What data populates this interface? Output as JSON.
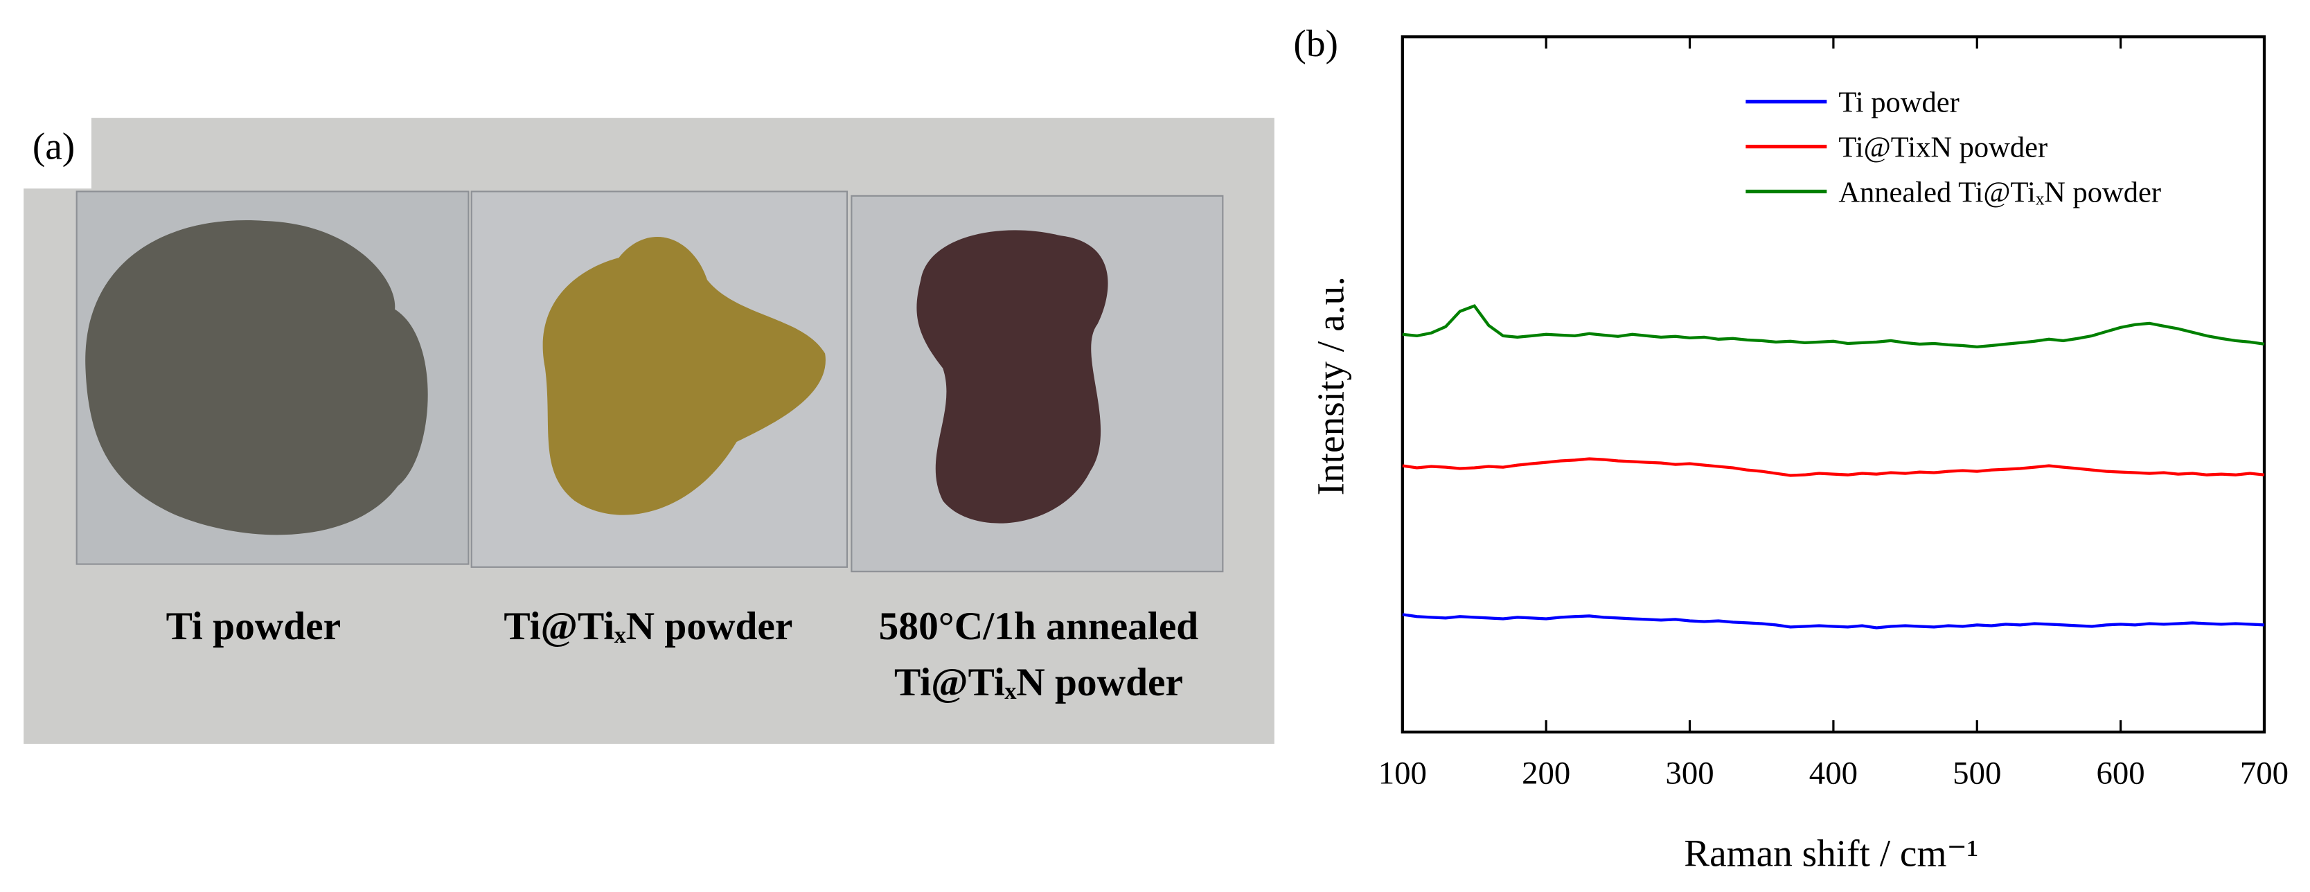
{
  "panel_a": {
    "label": "(a)",
    "samples": [
      "Ti powder",
      "Ti@TiₓN powder",
      "580°C/1h annealed",
      "Ti@TiₓN powder"
    ]
  },
  "chart_data": {
    "type": "line",
    "panel_label": "(b)",
    "xlabel": "Raman shift / cm⁻¹",
    "ylabel": "Intensity / a.u.",
    "xlim": [
      100,
      700
    ],
    "xticks": [
      100,
      200,
      300,
      400,
      500,
      600,
      700
    ],
    "ylim": [
      0,
      100
    ],
    "legend": "upper right",
    "x": [
      100,
      110,
      120,
      130,
      140,
      150,
      160,
      170,
      180,
      190,
      200,
      210,
      220,
      230,
      240,
      250,
      260,
      270,
      280,
      290,
      300,
      310,
      320,
      330,
      340,
      350,
      360,
      370,
      380,
      390,
      400,
      410,
      420,
      430,
      440,
      450,
      460,
      470,
      480,
      490,
      500,
      510,
      520,
      530,
      540,
      550,
      560,
      570,
      580,
      590,
      600,
      610,
      620,
      630,
      640,
      650,
      660,
      670,
      680,
      690,
      700
    ],
    "series": [
      {
        "name": "Ti powder",
        "color": "#0000ff",
        "values": [
          16.9,
          16.6,
          16.5,
          16.4,
          16.6,
          16.5,
          16.4,
          16.3,
          16.5,
          16.4,
          16.3,
          16.5,
          16.6,
          16.7,
          16.5,
          16.4,
          16.3,
          16.2,
          16.1,
          16.2,
          16.0,
          15.9,
          16.0,
          15.8,
          15.7,
          15.6,
          15.4,
          15.1,
          15.2,
          15.3,
          15.2,
          15.1,
          15.3,
          15.0,
          15.2,
          15.3,
          15.2,
          15.1,
          15.3,
          15.2,
          15.4,
          15.3,
          15.5,
          15.4,
          15.6,
          15.5,
          15.4,
          15.3,
          15.2,
          15.4,
          15.5,
          15.4,
          15.6,
          15.5,
          15.6,
          15.7,
          15.6,
          15.5,
          15.6,
          15.5,
          15.4
        ]
      },
      {
        "name": "Ti@TixN powder",
        "color": "#ff0000",
        "values": [
          38.3,
          38.0,
          38.2,
          38.1,
          37.9,
          38.0,
          38.2,
          38.1,
          38.4,
          38.6,
          38.8,
          39.0,
          39.1,
          39.3,
          39.2,
          39.0,
          38.9,
          38.8,
          38.7,
          38.5,
          38.6,
          38.4,
          38.2,
          38.0,
          37.7,
          37.5,
          37.2,
          36.9,
          37.0,
          37.2,
          37.1,
          37.0,
          37.2,
          37.1,
          37.3,
          37.2,
          37.4,
          37.3,
          37.5,
          37.6,
          37.5,
          37.7,
          37.8,
          37.9,
          38.1,
          38.3,
          38.1,
          37.9,
          37.7,
          37.5,
          37.4,
          37.3,
          37.2,
          37.3,
          37.1,
          37.2,
          37.0,
          37.1,
          37.0,
          37.2,
          37.0
        ]
      },
      {
        "name": "Annealed Ti@TiₓN powder",
        "color": "#008000",
        "values": [
          57.2,
          57.0,
          57.4,
          58.3,
          60.5,
          61.3,
          58.5,
          57.0,
          56.8,
          57.0,
          57.2,
          57.1,
          57.0,
          57.3,
          57.1,
          56.9,
          57.2,
          57.0,
          56.8,
          56.9,
          56.7,
          56.8,
          56.5,
          56.6,
          56.4,
          56.3,
          56.1,
          56.2,
          56.0,
          56.1,
          56.2,
          55.9,
          56.0,
          56.1,
          56.3,
          56.0,
          55.8,
          55.9,
          55.7,
          55.6,
          55.4,
          55.6,
          55.8,
          56.0,
          56.2,
          56.5,
          56.3,
          56.6,
          57.0,
          57.6,
          58.2,
          58.6,
          58.8,
          58.4,
          58.0,
          57.5,
          57.0,
          56.6,
          56.3,
          56.1,
          55.8
        ]
      }
    ]
  }
}
